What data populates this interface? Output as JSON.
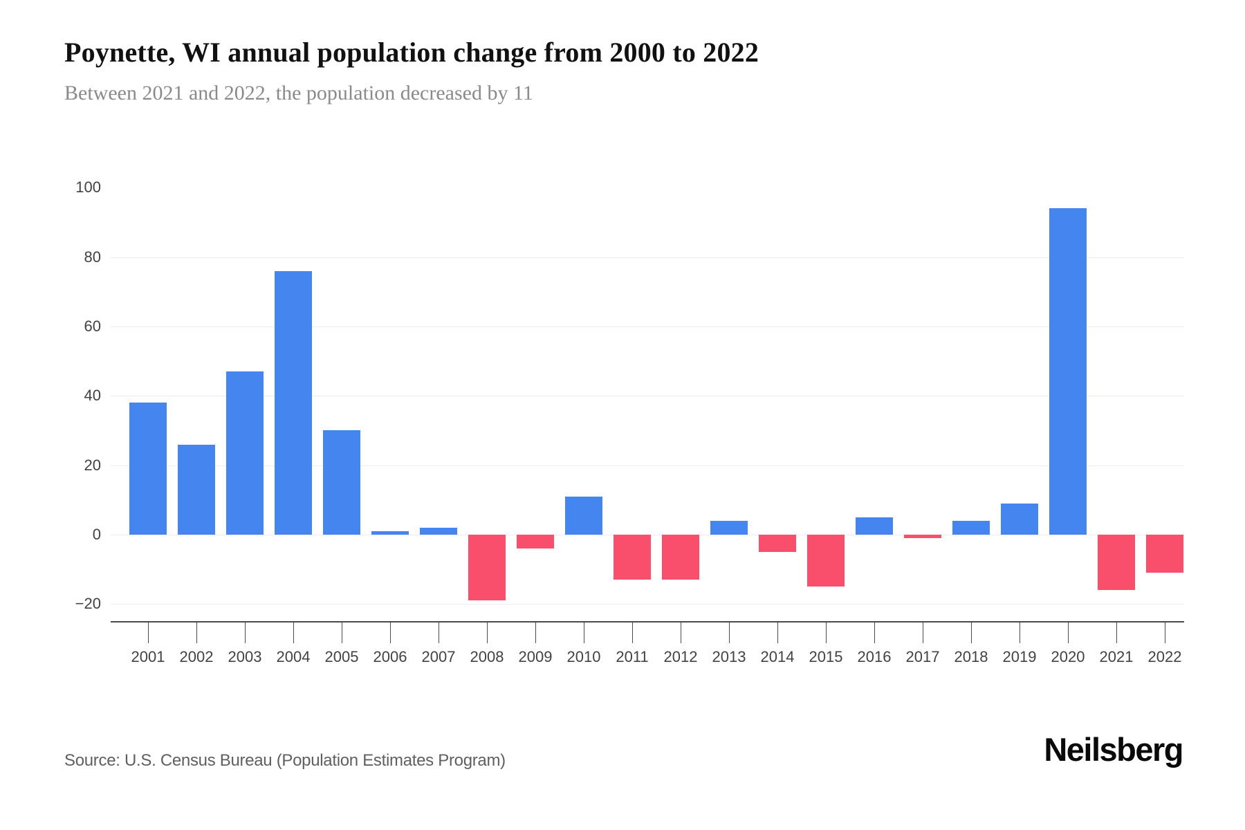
{
  "header": {
    "title": "Poynette, WI annual population change from 2000 to 2022",
    "subtitle": "Between 2021 and 2022, the population decreased by 11"
  },
  "footer": {
    "source": "Source: U.S. Census Bureau (Population Estimates Program)",
    "brand": "Neilsberg"
  },
  "chart_data": {
    "type": "bar",
    "title": "Poynette, WI annual population change from 2000 to 2022",
    "subtitle": "Between 2021 and 2022, the population decreased by 11",
    "categories": [
      "2001",
      "2002",
      "2003",
      "2004",
      "2005",
      "2006",
      "2007",
      "2008",
      "2009",
      "2010",
      "2011",
      "2012",
      "2013",
      "2014",
      "2015",
      "2016",
      "2017",
      "2018",
      "2019",
      "2020",
      "2021",
      "2022"
    ],
    "values": [
      38,
      26,
      47,
      76,
      30,
      1,
      2,
      -19,
      -4,
      11,
      -13,
      -13,
      4,
      -5,
      -15,
      5,
      -1,
      4,
      9,
      94,
      -16,
      -11
    ],
    "xlabel": "",
    "ylabel": "",
    "ylim": [
      -20,
      100
    ],
    "yticks": [
      {
        "label": "100",
        "value": 100,
        "line": false
      },
      {
        "label": "80",
        "value": 80,
        "line": true
      },
      {
        "label": "60",
        "value": 60,
        "line": true
      },
      {
        "label": "40",
        "value": 40,
        "line": true
      },
      {
        "label": "20",
        "value": 20,
        "line": true
      },
      {
        "label": "0",
        "value": 0,
        "line": true
      },
      {
        "label": "−20",
        "value": -20,
        "line": true
      }
    ],
    "grid": "horizontal",
    "legend_position": "none",
    "colors": {
      "positive": "#4485f0",
      "negative": "#fa4f6c",
      "gridline": "#ededed",
      "axis": "#4a4a4a",
      "tick_label": "#424242"
    }
  }
}
